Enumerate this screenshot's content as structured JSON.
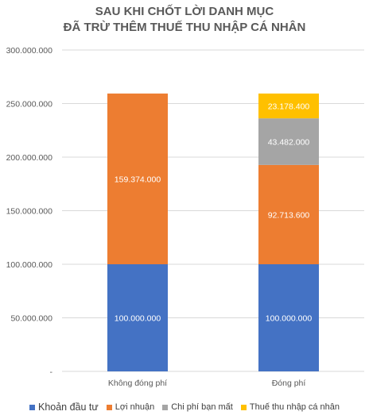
{
  "chart_data": {
    "type": "bar",
    "stacked": true,
    "title": [
      "SAU KHI CHỐT LỜI DANH MỤC",
      "ĐÃ TRỪ THÊM THUẾ THU NHẬP CÁ NHÂN"
    ],
    "categories": [
      "Không đóng phí",
      "Đóng phí"
    ],
    "ylim": [
      0,
      300000000
    ],
    "ytick_step": 50000000,
    "yticks": [
      "-",
      "50.000.000",
      "100.000.000",
      "150.000.000",
      "200.000.000",
      "250.000.000",
      "300.000.000"
    ],
    "grid": true,
    "legend": "bottom",
    "series": [
      {
        "name": "Khoản đầu tư",
        "color": "#4472C4",
        "values": [
          100000000,
          100000000
        ],
        "labels": [
          "100.000.000",
          "100.000.000"
        ]
      },
      {
        "name": "Lợi nhuận",
        "color": "#ED7D31",
        "values": [
          159374000,
          92713600
        ],
        "labels": [
          "159.374.000",
          "92.713.600"
        ]
      },
      {
        "name": "Chi phí bạn mất",
        "color": "#A5A5A5",
        "values": [
          0,
          43482000
        ],
        "labels": [
          "",
          "43.482.000"
        ]
      },
      {
        "name": "Thuế thu nhập cá nhân",
        "color": "#FFC000",
        "values": [
          0,
          23178400
        ],
        "labels": [
          "",
          "23.178.400"
        ]
      }
    ]
  }
}
